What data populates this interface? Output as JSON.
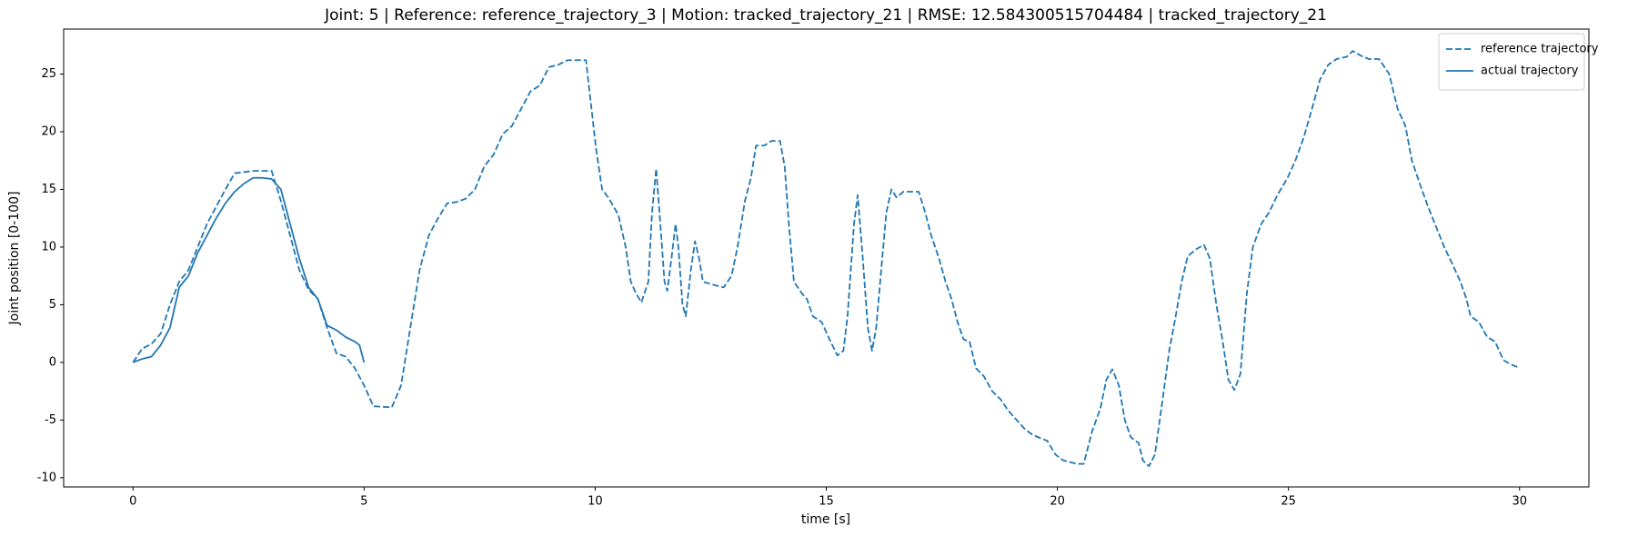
{
  "chart_data": {
    "type": "line",
    "title": "Joint: 5 | Reference: reference_trajectory_3 | Motion: tracked_trajectory_21 | RMSE: 12.584300515704484 | tracked_trajectory_21",
    "x_label": "time [s]",
    "y_label": "Joint position [0-100]",
    "xlim": [
      -1.5,
      31.5
    ],
    "ylim": [
      -10.8,
      28.9
    ],
    "xticks": [
      0,
      5,
      10,
      15,
      20,
      25,
      30
    ],
    "yticks": [
      -10,
      -5,
      0,
      5,
      10,
      15,
      20,
      25
    ],
    "legend": "upper right",
    "series": [
      {
        "name": "reference trajectory",
        "color": "#1f77b4",
        "linestyle": "dashed",
        "x": [
          0,
          0.2,
          0.4,
          0.6,
          0.8,
          1.0,
          1.2,
          1.4,
          1.6,
          1.8,
          2.0,
          2.2,
          2.4,
          2.6,
          3.0,
          3.2,
          3.4,
          3.6,
          3.8,
          4.0,
          4.2,
          4.4,
          4.6,
          4.8,
          5.0,
          5.2,
          5.6,
          5.8,
          6.0,
          6.2,
          6.4,
          6.6,
          6.8,
          7.0,
          7.2,
          7.4,
          7.6,
          7.8,
          8.0,
          8.2,
          8.4,
          8.6,
          8.8,
          9.0,
          9.2,
          9.4,
          9.8,
          10.02,
          10.15,
          10.3,
          10.5,
          10.66,
          10.77,
          10.88,
          11.0,
          11.15,
          11.23,
          11.32,
          11.41,
          11.5,
          11.56,
          11.65,
          11.74,
          11.8,
          11.89,
          11.96,
          12.07,
          12.16,
          12.25,
          12.33,
          12.49,
          12.78,
          12.95,
          13.08,
          13.24,
          13.37,
          13.48,
          13.66,
          13.81,
          14.0,
          14.1,
          14.19,
          14.3,
          14.47,
          14.58,
          14.71,
          14.9,
          15.07,
          15.24,
          15.37,
          15.46,
          15.6,
          15.68,
          15.79,
          15.9,
          15.99,
          16.08,
          16.21,
          16.3,
          16.41,
          16.52,
          16.67,
          17.0,
          17.14,
          17.27,
          17.44,
          17.58,
          17.71,
          17.84,
          17.97,
          18.1,
          18.24,
          18.41,
          18.59,
          18.77,
          18.94,
          19.12,
          19.3,
          19.47,
          19.78,
          19.96,
          20.13,
          20.42,
          20.57,
          20.75,
          20.93,
          21.06,
          21.19,
          21.33,
          21.46,
          21.59,
          21.76,
          21.85,
          21.98,
          22.11,
          22.25,
          22.42,
          22.56,
          22.69,
          22.82,
          23.0,
          23.17,
          23.3,
          23.44,
          23.57,
          23.7,
          23.83,
          23.96,
          24.1,
          24.23,
          24.41,
          24.58,
          24.76,
          24.98,
          25.15,
          25.33,
          25.51,
          25.68,
          25.86,
          26.04,
          26.26,
          26.39,
          26.56,
          26.74,
          26.96,
          27.18,
          27.36,
          27.53,
          27.67,
          27.84,
          28.02,
          28.19,
          28.37,
          28.55,
          28.72,
          28.85,
          28.94,
          29.12,
          29.3,
          29.47,
          29.65,
          29.78,
          30.0
        ],
        "values": [
          0,
          1.2,
          1.6,
          2.5,
          5,
          7,
          8,
          10,
          12,
          13.5,
          15,
          16.4,
          16.5,
          16.6,
          16.6,
          14,
          11,
          8,
          6.3,
          5.5,
          3,
          0.8,
          0.5,
          -0.5,
          -2,
          -3.8,
          -3.9,
          -2,
          3,
          8,
          11,
          12.5,
          13.8,
          13.9,
          14.2,
          15,
          17,
          18,
          19.8,
          20.5,
          22,
          23.5,
          24,
          25.6,
          25.8,
          26.2,
          26.2,
          18.5,
          15,
          14.2,
          12.8,
          10,
          7,
          6,
          5.2,
          7,
          13,
          16.8,
          12,
          7,
          6.2,
          9,
          12,
          10,
          5,
          4,
          8,
          10.5,
          9,
          7,
          6.8,
          6.5,
          7.5,
          10,
          14,
          16,
          18.8,
          18.8,
          19.2,
          19.2,
          17,
          12,
          7,
          6,
          5.5,
          4,
          3.5,
          2,
          0.6,
          1,
          4,
          12,
          14.5,
          9,
          3,
          1,
          3,
          9,
          13,
          15,
          14.3,
          14.8,
          14.8,
          13,
          11,
          9,
          7,
          5.5,
          3.5,
          2,
          1.8,
          -0.5,
          -1.2,
          -2.5,
          -3.2,
          -4.2,
          -5,
          -5.8,
          -6.3,
          -6.8,
          -8,
          -8.5,
          -8.8,
          -8.8,
          -6,
          -4,
          -1.5,
          -0.6,
          -2,
          -5,
          -6.5,
          -7,
          -8.5,
          -9,
          -8,
          -4,
          1,
          4,
          7,
          9.2,
          9.8,
          10.2,
          9,
          5,
          2,
          -1.5,
          -2.4,
          -1,
          6,
          10,
          12,
          13,
          14.5,
          16,
          17.5,
          19.5,
          22,
          24.5,
          25.8,
          26.3,
          26.5,
          27,
          26.6,
          26.3,
          26.3,
          25,
          22,
          20.5,
          17.5,
          15.5,
          13.5,
          11.8,
          10,
          8.5,
          7,
          5.5,
          4,
          3.5,
          2.2,
          1.8,
          0.2,
          -0.1,
          -0.5
        ]
      },
      {
        "name": "actual trajectory",
        "color": "#1f77b4",
        "linestyle": "solid",
        "x": [
          0,
          0.2,
          0.4,
          0.6,
          0.8,
          1.0,
          1.2,
          1.4,
          1.6,
          1.8,
          2.0,
          2.2,
          2.4,
          2.6,
          2.8,
          3.0,
          3.2,
          3.4,
          3.6,
          3.8,
          4.0,
          4.2,
          4.4,
          4.6,
          4.8,
          4.9,
          5.0
        ],
        "values": [
          0,
          0.3,
          0.5,
          1.5,
          3,
          6.5,
          7.5,
          9.5,
          11,
          12.5,
          13.8,
          14.8,
          15.5,
          16,
          16,
          15.9,
          15,
          12,
          9,
          6.5,
          5.5,
          3.2,
          2.8,
          2.2,
          1.8,
          1.5,
          0
        ]
      }
    ]
  }
}
